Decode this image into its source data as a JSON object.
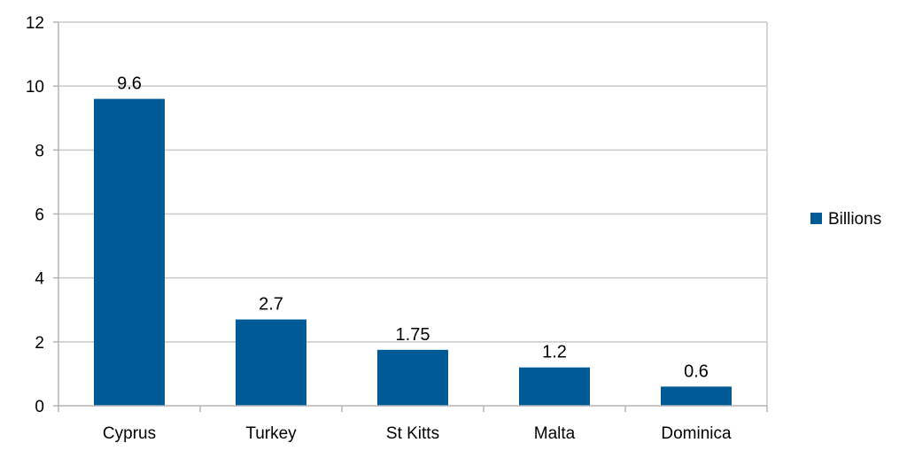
{
  "chart_data": {
    "type": "bar",
    "categories": [
      "Cyprus",
      "Turkey",
      "St Kitts",
      "Malta",
      "Dominica"
    ],
    "series": [
      {
        "name": "Billions",
        "values": [
          9.6,
          2.7,
          1.75,
          1.2,
          0.6
        ],
        "labels": [
          "9.6",
          "2.7",
          "1.75",
          "1.2",
          "0.6"
        ],
        "color": "#005a96"
      }
    ],
    "title": "",
    "xlabel": "",
    "ylabel": "",
    "ylim": [
      0,
      12
    ],
    "yticks": [
      "0",
      "2",
      "4",
      "6",
      "8",
      "10",
      "12"
    ],
    "grid": true,
    "legend_position": "right",
    "colors": {
      "grid": "#c8c8c8",
      "axis": "#b3b3b3"
    }
  }
}
